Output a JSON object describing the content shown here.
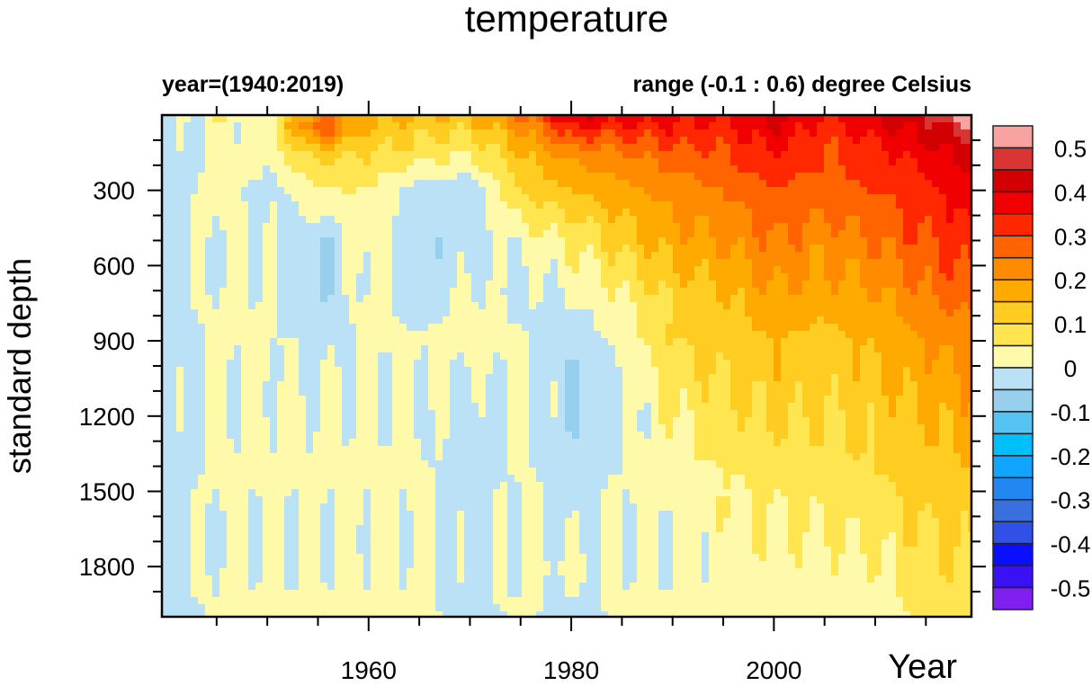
{
  "chart_data": {
    "type": "heatmap",
    "title": "temperature",
    "left_subtitle": "year=(1940:2019)",
    "right_subtitle": "range (-0.1 : 0.6) degree Celsius",
    "xlabel": "Year",
    "ylabel": "standard depth",
    "xlim": [
      1940,
      2019
    ],
    "ylim": [
      2000,
      0
    ],
    "y_reversed": true,
    "x_ticks": [
      1960,
      1980,
      2000
    ],
    "y_ticks": [
      300,
      600,
      900,
      1200,
      1500,
      1800
    ],
    "x": [
      1940,
      1945,
      1950,
      1955,
      1960,
      1965,
      1970,
      1975,
      1980,
      1985,
      1990,
      1995,
      2000,
      2005,
      2010,
      2015,
      2019
    ],
    "depths": [
      0,
      50,
      150,
      300,
      500,
      700,
      900,
      1200,
      1500,
      1800,
      2000
    ],
    "values": [
      [
        -0.03,
        0.05,
        0.02,
        0.25,
        0.15,
        0.15,
        0.15,
        0.25,
        0.4,
        0.38,
        0.38,
        0.35,
        0.42,
        0.35,
        0.4,
        0.45,
        0.55
      ],
      [
        -0.03,
        0.02,
        0.02,
        0.3,
        0.15,
        0.12,
        0.12,
        0.2,
        0.35,
        0.32,
        0.35,
        0.33,
        0.4,
        0.32,
        0.38,
        0.42,
        0.48
      ],
      [
        -0.03,
        0.02,
        0.02,
        0.12,
        0.1,
        0.08,
        0.05,
        0.15,
        0.22,
        0.25,
        0.28,
        0.3,
        0.35,
        0.3,
        0.33,
        0.38,
        0.42
      ],
      [
        -0.03,
        0.02,
        -0.02,
        0.05,
        0.05,
        -0.03,
        -0.03,
        0.1,
        0.15,
        0.18,
        0.22,
        0.25,
        0.3,
        0.28,
        0.3,
        0.33,
        0.38
      ],
      [
        -0.03,
        0.01,
        0.0,
        -0.05,
        0.03,
        -0.03,
        -0.03,
        0.02,
        0.05,
        0.12,
        0.18,
        0.2,
        0.25,
        0.22,
        0.25,
        0.3,
        0.33
      ],
      [
        -0.03,
        0.01,
        0.01,
        -0.06,
        0.02,
        -0.04,
        0.01,
        -0.02,
        0.01,
        0.05,
        0.12,
        0.15,
        0.2,
        0.18,
        0.2,
        0.25,
        0.28
      ],
      [
        -0.03,
        0.01,
        0.01,
        -0.02,
        0.01,
        0.01,
        0.02,
        0.01,
        -0.04,
        0.02,
        0.1,
        0.12,
        0.15,
        0.13,
        0.16,
        0.2,
        0.22
      ],
      [
        -0.03,
        0.01,
        0.01,
        0.01,
        0.01,
        0.01,
        -0.03,
        0.01,
        -0.04,
        -0.02,
        0.05,
        0.08,
        0.11,
        0.1,
        0.12,
        0.15,
        0.18
      ],
      [
        -0.03,
        0.01,
        0.01,
        0.01,
        0.01,
        0.01,
        -0.03,
        0.01,
        -0.03,
        0.01,
        0.02,
        0.04,
        0.06,
        0.07,
        0.09,
        0.12,
        0.13
      ],
      [
        -0.03,
        0.01,
        0.01,
        0.01,
        0.01,
        0.01,
        -0.02,
        0.01,
        0.01,
        0.01,
        0.01,
        0.02,
        0.03,
        0.03,
        0.04,
        0.08,
        0.1
      ],
      [
        -0.03,
        0.01,
        0.01,
        0.01,
        0.01,
        0.01,
        -0.02,
        0.01,
        -0.02,
        0.01,
        0.01,
        0.01,
        0.01,
        0.02,
        0.03,
        0.06,
        0.08
      ]
    ],
    "colorbar": {
      "labels": [
        "0.5",
        "0.4",
        "0.3",
        "0.2",
        "0.1",
        "0",
        "-0.1",
        "-0.2",
        "-0.3",
        "-0.4",
        "-0.5"
      ],
      "level_step": 0.05,
      "colors_high_to_low": [
        "#F9A3A0",
        "#D93535",
        "#D20000",
        "#F00000",
        "#FF2800",
        "#FF6400",
        "#FF8C00",
        "#FFAA00",
        "#FFCC22",
        "#FFE650",
        "#FFF9AA",
        "#BAE1F5",
        "#98CFEC",
        "#55C4F3",
        "#00BFFF",
        "#12A5FF",
        "#2387F2",
        "#3A6FE0",
        "#3050E8",
        "#0A10FF",
        "#3A10F5",
        "#8020F0"
      ]
    }
  }
}
